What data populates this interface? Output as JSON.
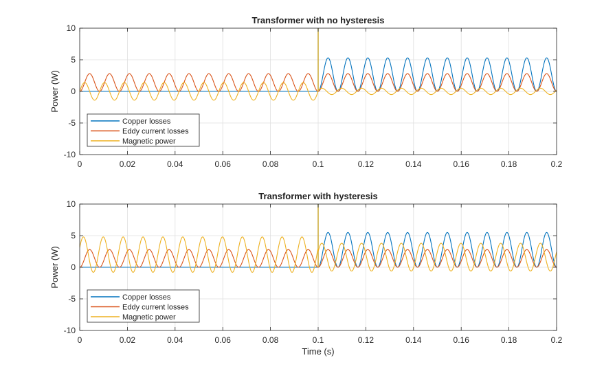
{
  "colors": {
    "copper": "#0072BD",
    "eddy": "#D95319",
    "magnetic": "#EDB120",
    "grid": "#dfdfdf",
    "axes": "#262626"
  },
  "chart_data": [
    {
      "type": "line",
      "title": "Transformer with no hysteresis",
      "xlabel": "",
      "ylabel": "Power (W)",
      "xlim": [
        0,
        0.2
      ],
      "ylim": [
        -10,
        10
      ],
      "xticks": [
        0,
        0.02,
        0.04,
        0.06,
        0.08,
        0.1,
        0.12,
        0.14,
        0.16,
        0.18,
        0.2
      ],
      "yticks": [
        -10,
        -5,
        0,
        5,
        10
      ],
      "grid": true,
      "legend_position": "bottom-left",
      "frequency_hz": 60,
      "event_time_s": 0.1,
      "series": [
        {
          "name": "Copper losses",
          "color_key": "copper",
          "before_event": {
            "min": 0,
            "max": 0
          },
          "after_event": {
            "min": 0,
            "max": 5.3
          },
          "spike_at_event": 10
        },
        {
          "name": "Eddy current losses",
          "color_key": "eddy",
          "before_event": {
            "min": 0,
            "max": 2.8
          },
          "after_event": {
            "min": 0,
            "max": 2.8
          }
        },
        {
          "name": "Magnetic power",
          "color_key": "magnetic",
          "before_event": {
            "min": -1.4,
            "max": 1.4
          },
          "after_event": {
            "min": -0.5,
            "max": 0.5
          },
          "spike_at_event": 10
        }
      ]
    },
    {
      "type": "line",
      "title": "Transformer with hysteresis",
      "xlabel": "Time (s)",
      "ylabel": "Power (W)",
      "xlim": [
        0,
        0.2
      ],
      "ylim": [
        -10,
        10
      ],
      "xticks": [
        0,
        0.02,
        0.04,
        0.06,
        0.08,
        0.1,
        0.12,
        0.14,
        0.16,
        0.18,
        0.2
      ],
      "yticks": [
        -10,
        -5,
        0,
        5,
        10
      ],
      "grid": true,
      "legend_position": "bottom-left",
      "frequency_hz": 60,
      "event_time_s": 0.1,
      "series": [
        {
          "name": "Copper losses",
          "color_key": "copper",
          "before_event": {
            "min": 0,
            "max": 0
          },
          "after_event": {
            "min": 0,
            "max": 5.5
          },
          "spike_at_event": 10
        },
        {
          "name": "Eddy current losses",
          "color_key": "eddy",
          "before_event": {
            "min": 0,
            "max": 2.8
          },
          "after_event": {
            "min": 0,
            "max": 2.8
          }
        },
        {
          "name": "Magnetic power",
          "color_key": "magnetic",
          "before_event": {
            "min": -0.8,
            "max": 4.8
          },
          "after_event": {
            "min": -0.6,
            "max": 3.8
          },
          "spike_at_event": 10
        }
      ]
    }
  ]
}
